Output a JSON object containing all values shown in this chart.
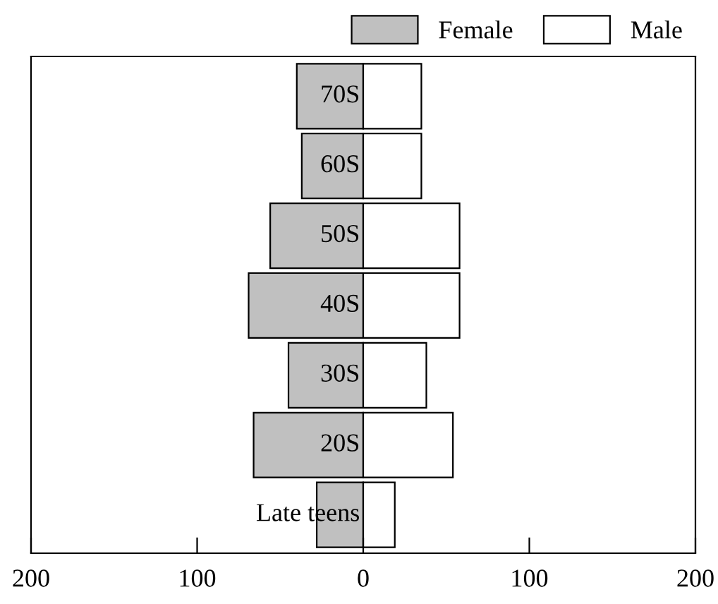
{
  "chart_data": {
    "type": "bar",
    "stacked": true,
    "orientation": "horizontal",
    "categories": [
      "70S",
      "60S",
      "50S",
      "40S",
      "30S",
      "20S",
      "Late teens"
    ],
    "series": [
      {
        "name": "Female",
        "color": "#c0c0c0",
        "values": [
          -40,
          -37,
          -56,
          -69,
          -45,
          -66,
          -28
        ]
      },
      {
        "name": "Male",
        "color": "#ffffff",
        "values": [
          35,
          35,
          58,
          58,
          38,
          54,
          19
        ]
      }
    ],
    "xlim": [
      -200,
      200
    ],
    "xticks": [
      {
        "value": -200,
        "label": "200"
      },
      {
        "value": -100,
        "label": "100"
      },
      0,
      100,
      200
    ],
    "legend": "top right",
    "grid": false
  }
}
